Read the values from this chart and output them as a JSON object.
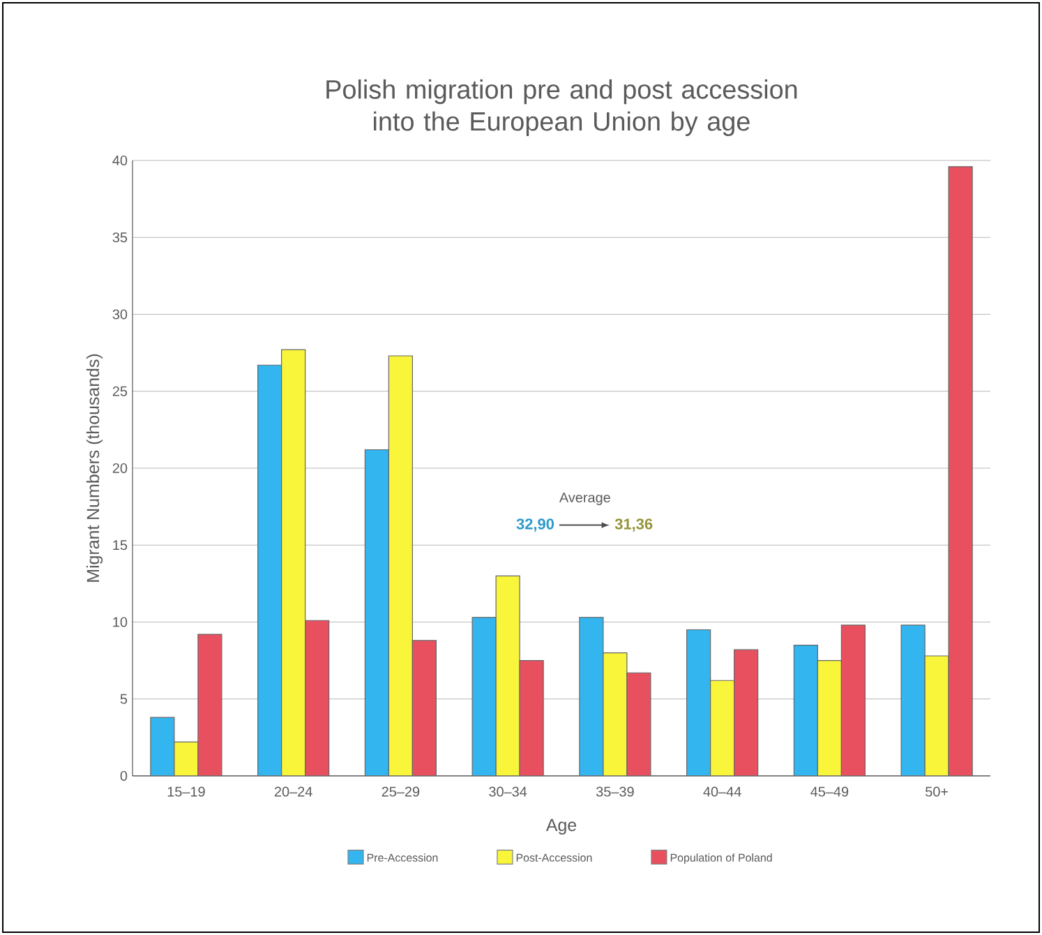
{
  "chart_data": {
    "type": "bar",
    "title": "Polish migration pre and post accession into the European Union by age",
    "xlabel": "Age",
    "ylabel": "Migrant Numbers (thousands)",
    "categories": [
      "15–19",
      "20–24",
      "25–29",
      "30–34",
      "35–39",
      "40–44",
      "45–49",
      "50+"
    ],
    "series": [
      {
        "name": "Pre-Accession",
        "color": "#33b5f0",
        "values": [
          3.8,
          26.7,
          21.2,
          10.3,
          10.3,
          9.5,
          8.5,
          9.8
        ]
      },
      {
        "name": "Post-Accession",
        "color": "#f8f53a",
        "values": [
          2.2,
          27.7,
          27.3,
          13.0,
          8.0,
          6.2,
          7.5,
          7.8
        ]
      },
      {
        "name": "Population of Poland",
        "color": "#e8505f",
        "values": [
          9.2,
          10.1,
          8.8,
          7.5,
          6.7,
          8.2,
          9.8,
          39.6
        ]
      }
    ],
    "annotations": [
      "Average",
      "32,90",
      "31,36"
    ],
    "ylim": [
      0,
      40
    ],
    "yticks": [
      0,
      5,
      10,
      15,
      20,
      25,
      30,
      35,
      40
    ],
    "grid": "y",
    "legend": "bottom"
  }
}
